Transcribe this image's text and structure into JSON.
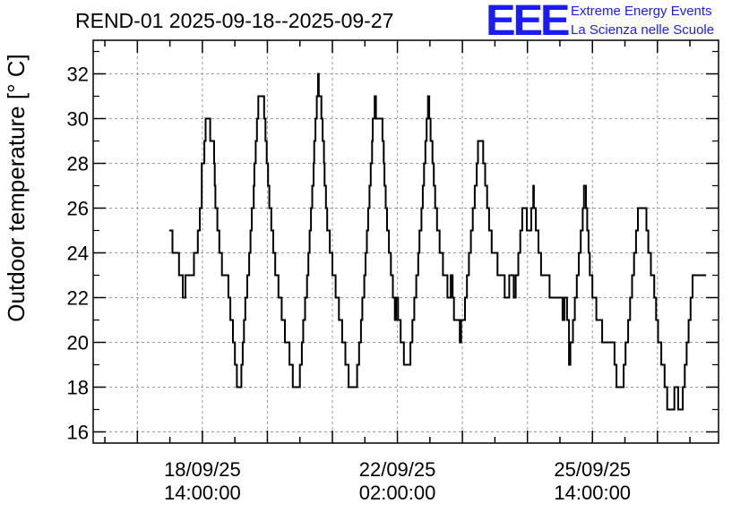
{
  "header": {
    "title": "REND-01 2025-09-18--2025-09-27",
    "logo_text": "EEE",
    "logo_line1": "Extreme Energy Events",
    "logo_line2": "La Scienza nelle Scuole"
  },
  "colors": {
    "logo": "#1a1aff",
    "line": "#000000",
    "grid": "#9a9a9a"
  },
  "chart_data": {
    "type": "line",
    "title": "REND-01 2025-09-18--2025-09-27",
    "xlabel": "",
    "ylabel": "Outdoor temperature [° C]",
    "ylim": [
      15.5,
      33.5
    ],
    "xlim": [
      -1.68,
      7.94
    ],
    "x_unit": "days since 18/09/25 14:00:00",
    "grid": true,
    "step": true,
    "yticks": [
      16,
      18,
      20,
      22,
      24,
      26,
      28,
      30,
      32
    ],
    "xticks": [
      {
        "x": 0,
        "label": [
          "18/09/25",
          "14:00:00"
        ]
      },
      {
        "x": 3,
        "label": [
          "22/09/25",
          "02:00:00"
        ]
      },
      {
        "x": 6,
        "label": [
          "25/09/25",
          "14:00:00"
        ]
      }
    ],
    "series": [
      {
        "name": "",
        "points": [
          [
            -0.51,
            25
          ],
          [
            -0.46,
            24
          ],
          [
            -0.36,
            23
          ],
          [
            -0.3,
            22
          ],
          [
            -0.26,
            23
          ],
          [
            -0.2,
            23
          ],
          [
            -0.13,
            24
          ],
          [
            -0.07,
            25
          ],
          [
            -0.04,
            26
          ],
          [
            -0.01,
            28
          ],
          [
            0.03,
            29
          ],
          [
            0.05,
            30
          ],
          [
            0.1,
            30
          ],
          [
            0.12,
            29
          ],
          [
            0.17,
            29
          ],
          [
            0.18,
            28
          ],
          [
            0.19,
            27
          ],
          [
            0.2,
            26
          ],
          [
            0.23,
            25
          ],
          [
            0.26,
            24
          ],
          [
            0.3,
            23
          ],
          [
            0.37,
            23
          ],
          [
            0.4,
            22
          ],
          [
            0.43,
            21
          ],
          [
            0.47,
            20
          ],
          [
            0.5,
            19
          ],
          [
            0.53,
            18
          ],
          [
            0.57,
            18
          ],
          [
            0.6,
            19
          ],
          [
            0.62,
            20
          ],
          [
            0.64,
            21
          ],
          [
            0.66,
            22
          ],
          [
            0.69,
            23
          ],
          [
            0.72,
            24
          ],
          [
            0.74,
            25
          ],
          [
            0.76,
            26
          ],
          [
            0.79,
            27
          ],
          [
            0.8,
            28
          ],
          [
            0.82,
            29
          ],
          [
            0.84,
            30
          ],
          [
            0.86,
            31
          ],
          [
            0.93,
            31
          ],
          [
            0.95,
            30
          ],
          [
            0.97,
            29
          ],
          [
            0.99,
            28
          ],
          [
            1.01,
            27
          ],
          [
            1.03,
            26
          ],
          [
            1.06,
            25
          ],
          [
            1.09,
            24
          ],
          [
            1.12,
            23
          ],
          [
            1.17,
            22
          ],
          [
            1.22,
            21
          ],
          [
            1.27,
            20
          ],
          [
            1.34,
            19
          ],
          [
            1.39,
            18
          ],
          [
            1.47,
            18
          ],
          [
            1.5,
            19
          ],
          [
            1.53,
            20
          ],
          [
            1.55,
            21
          ],
          [
            1.58,
            22
          ],
          [
            1.61,
            23
          ],
          [
            1.63,
            24
          ],
          [
            1.65,
            25
          ],
          [
            1.67,
            26
          ],
          [
            1.69,
            27
          ],
          [
            1.71,
            28
          ],
          [
            1.72,
            29
          ],
          [
            1.74,
            30
          ],
          [
            1.76,
            31
          ],
          [
            1.78,
            32
          ],
          [
            1.79,
            31
          ],
          [
            1.82,
            31
          ],
          [
            1.83,
            30
          ],
          [
            1.85,
            29
          ],
          [
            1.87,
            28
          ],
          [
            1.88,
            27
          ],
          [
            1.9,
            26
          ],
          [
            1.92,
            25
          ],
          [
            1.96,
            24
          ],
          [
            2.0,
            23
          ],
          [
            2.05,
            22
          ],
          [
            2.1,
            21
          ],
          [
            2.15,
            20
          ],
          [
            2.2,
            19
          ],
          [
            2.25,
            18
          ],
          [
            2.35,
            18
          ],
          [
            2.38,
            19
          ],
          [
            2.41,
            20
          ],
          [
            2.44,
            21
          ],
          [
            2.46,
            22
          ],
          [
            2.49,
            23
          ],
          [
            2.51,
            24
          ],
          [
            2.53,
            25
          ],
          [
            2.55,
            26
          ],
          [
            2.57,
            27
          ],
          [
            2.59,
            28
          ],
          [
            2.61,
            29
          ],
          [
            2.62,
            30
          ],
          [
            2.65,
            31
          ],
          [
            2.67,
            30
          ],
          [
            2.75,
            30
          ],
          [
            2.77,
            29
          ],
          [
            2.79,
            28
          ],
          [
            2.8,
            27
          ],
          [
            2.82,
            26
          ],
          [
            2.84,
            25
          ],
          [
            2.87,
            24
          ],
          [
            2.9,
            23
          ],
          [
            2.93,
            22
          ],
          [
            2.96,
            21
          ],
          [
            2.98,
            22
          ],
          [
            3.01,
            21
          ],
          [
            3.05,
            20
          ],
          [
            3.1,
            19
          ],
          [
            3.17,
            19
          ],
          [
            3.2,
            20
          ],
          [
            3.23,
            21
          ],
          [
            3.26,
            22
          ],
          [
            3.29,
            23
          ],
          [
            3.32,
            24
          ],
          [
            3.34,
            25
          ],
          [
            3.37,
            26
          ],
          [
            3.39,
            27
          ],
          [
            3.41,
            28
          ],
          [
            3.43,
            29
          ],
          [
            3.45,
            30
          ],
          [
            3.47,
            31
          ],
          [
            3.49,
            30
          ],
          [
            3.51,
            29
          ],
          [
            3.54,
            28
          ],
          [
            3.56,
            27
          ],
          [
            3.58,
            26
          ],
          [
            3.61,
            25
          ],
          [
            3.65,
            24
          ],
          [
            3.7,
            23
          ],
          [
            3.77,
            22
          ],
          [
            3.82,
            23
          ],
          [
            3.85,
            22
          ],
          [
            3.87,
            21
          ],
          [
            3.92,
            21
          ],
          [
            3.96,
            20
          ],
          [
            3.98,
            21
          ],
          [
            4.02,
            21
          ],
          [
            4.04,
            22
          ],
          [
            4.07,
            23
          ],
          [
            4.1,
            24
          ],
          [
            4.13,
            25
          ],
          [
            4.16,
            26
          ],
          [
            4.19,
            27
          ],
          [
            4.22,
            28
          ],
          [
            4.24,
            29
          ],
          [
            4.3,
            29
          ],
          [
            4.32,
            28
          ],
          [
            4.35,
            27
          ],
          [
            4.38,
            26
          ],
          [
            4.41,
            25
          ],
          [
            4.45,
            24
          ],
          [
            4.54,
            23
          ],
          [
            4.65,
            22
          ],
          [
            4.7,
            22
          ],
          [
            4.72,
            23
          ],
          [
            4.76,
            23
          ],
          [
            4.79,
            22
          ],
          [
            4.82,
            23
          ],
          [
            4.86,
            24
          ],
          [
            4.89,
            25
          ],
          [
            4.92,
            26
          ],
          [
            4.97,
            26
          ],
          [
            4.99,
            25
          ],
          [
            5.04,
            25
          ],
          [
            5.06,
            26
          ],
          [
            5.09,
            27
          ],
          [
            5.1,
            26
          ],
          [
            5.13,
            25
          ],
          [
            5.17,
            24
          ],
          [
            5.21,
            23
          ],
          [
            5.31,
            23
          ],
          [
            5.34,
            22
          ],
          [
            5.51,
            22
          ],
          [
            5.54,
            21
          ],
          [
            5.57,
            22
          ],
          [
            5.61,
            21
          ],
          [
            5.64,
            19
          ],
          [
            5.66,
            20
          ],
          [
            5.7,
            21
          ],
          [
            5.73,
            22
          ],
          [
            5.76,
            23
          ],
          [
            5.79,
            24
          ],
          [
            5.82,
            25
          ],
          [
            5.85,
            26
          ],
          [
            5.87,
            27
          ],
          [
            5.9,
            26
          ],
          [
            5.92,
            25
          ],
          [
            5.94,
            24
          ],
          [
            5.96,
            23
          ],
          [
            6.0,
            22
          ],
          [
            6.06,
            21
          ],
          [
            6.11,
            21
          ],
          [
            6.15,
            20
          ],
          [
            6.31,
            20
          ],
          [
            6.34,
            19
          ],
          [
            6.37,
            18
          ],
          [
            6.45,
            18
          ],
          [
            6.48,
            19
          ],
          [
            6.51,
            20
          ],
          [
            6.55,
            21
          ],
          [
            6.58,
            22
          ],
          [
            6.61,
            23
          ],
          [
            6.64,
            24
          ],
          [
            6.67,
            25
          ],
          [
            6.7,
            26
          ],
          [
            6.8,
            26
          ],
          [
            6.83,
            25
          ],
          [
            6.86,
            24
          ],
          [
            6.9,
            23
          ],
          [
            6.95,
            22
          ],
          [
            6.98,
            21
          ],
          [
            7.01,
            20
          ],
          [
            7.06,
            19
          ],
          [
            7.11,
            18
          ],
          [
            7.15,
            17
          ],
          [
            7.24,
            17
          ],
          [
            7.26,
            18
          ],
          [
            7.32,
            17
          ],
          [
            7.39,
            18
          ],
          [
            7.42,
            19
          ],
          [
            7.45,
            20
          ],
          [
            7.48,
            21
          ],
          [
            7.51,
            22
          ],
          [
            7.54,
            23
          ],
          [
            7.64,
            23
          ]
        ]
      }
    ]
  }
}
